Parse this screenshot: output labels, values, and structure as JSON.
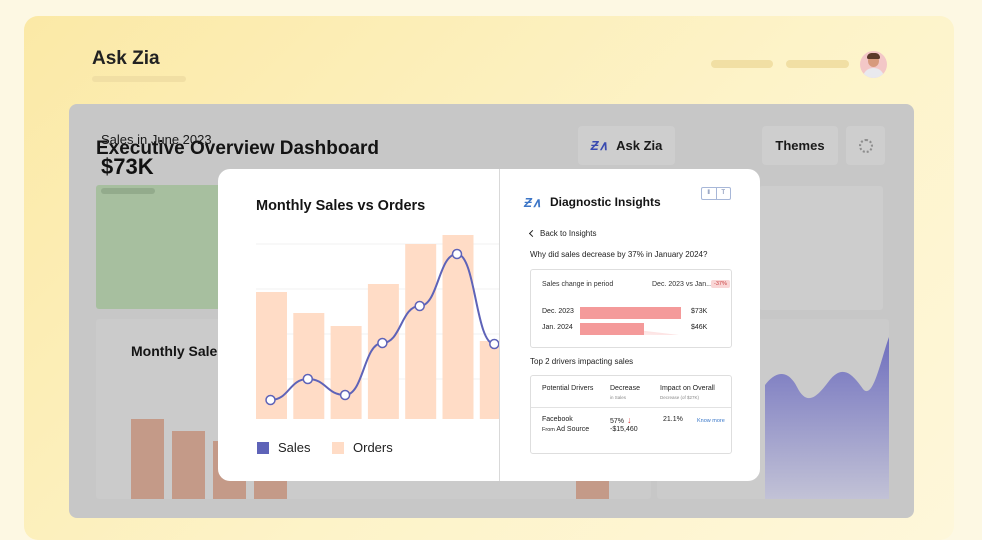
{
  "app": {
    "title": "Ask Zia"
  },
  "colors": {
    "sales_line": "#5e63b8",
    "orders_bar": "#ffdcc6",
    "kpi_green": "#a7bf9f",
    "accent_red": "#f49a9a"
  },
  "dashboard": {
    "title": "Executive Overview Dashboard",
    "ask_zia_label": "Ask Zia",
    "ask_zia_logo": "Ƶ∧",
    "themes_label": "Themes",
    "kpi": {
      "label": "Sales in June 2023",
      "value": "$73K"
    },
    "lower_left_title": "Monthly Sales vs Orders"
  },
  "chart_data": {
    "type": "bar",
    "title": "Monthly Sales vs Orders",
    "legend_position": "bottom-left",
    "series": [
      {
        "name": "Sales",
        "type": "line",
        "values": [
          19,
          40,
          24,
          76,
          113,
          165,
          75
        ]
      },
      {
        "name": "Orders",
        "type": "bar",
        "values": [
          127,
          106,
          93,
          135,
          175,
          184,
          78
        ]
      }
    ],
    "ylim": [
      0,
      190
    ]
  },
  "insights": {
    "logo": "Ƶ∧",
    "title": "Diagnostic Insights",
    "toggle": [
      "⫴",
      "T"
    ],
    "back_label": "Back to Insights",
    "question": "Why did sales decrease by 37% in January 2024?",
    "period": {
      "label": "Sales change in period",
      "range": "Dec. 2023 vs Jan...",
      "badge": "-37%",
      "rows": [
        {
          "label": "Dec. 2023",
          "value": "$73K",
          "fraction": 1.0
        },
        {
          "label": "Jan. 2024",
          "value": "$46K",
          "fraction": 0.63
        }
      ]
    },
    "drivers_title": "Top 2 drivers impacting sales",
    "table": {
      "headers": [
        "Potential Drivers",
        "Decrease",
        "Impact on Overall"
      ],
      "subheaders": [
        "",
        "in Sales",
        "Decrease (of $27K)"
      ],
      "row": {
        "driver": "Facebook",
        "from_label": "From",
        "source": "Ad Source",
        "pct": "57%",
        "amount": "-$15,460",
        "impact": "21.1%",
        "link": "Know more"
      }
    }
  }
}
